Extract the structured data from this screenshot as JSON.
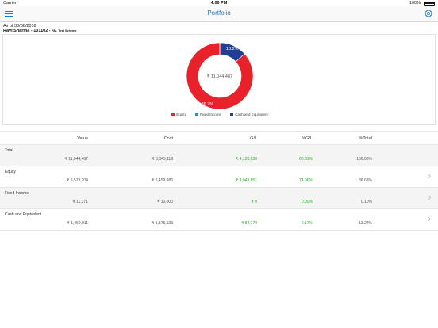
{
  "status_bar": {
    "carrier": "Carrier",
    "time": "4:06 PM",
    "battery_pct": "100%"
  },
  "nav": {
    "title": "Portfolio"
  },
  "header": {
    "as_of": "As of 30/08/2018",
    "client": "Ravi Sharma - 101102 - ",
    "scheme": "RM- Test Scheme"
  },
  "chart_data": {
    "type": "pie",
    "variant": "donut",
    "center_label": "₹ 11,044,487",
    "slices": [
      {
        "name": "Equity",
        "value": 86.7,
        "label": "86.7%",
        "color": "#e8212a"
      },
      {
        "name": "Fixed Income",
        "value": 0.1,
        "label": "",
        "color": "#1f8fd6"
      },
      {
        "name": "Cash and Equivalent",
        "value": 13.2,
        "label": "13.2%",
        "color": "#223f94"
      }
    ],
    "legend_position": "bottom"
  },
  "legend": [
    {
      "label": "Equity",
      "color": "#e8212a"
    },
    {
      "label": "Fixed Income",
      "color": "#1f8fd6"
    },
    {
      "label": "Cash and Equivalent",
      "color": "#223f94"
    }
  ],
  "table": {
    "headers": {
      "value": "Value",
      "cost": "Cost",
      "gl": "G/L",
      "pct_gl": "%G/L",
      "pct_total": "%Total"
    },
    "rows": [
      {
        "label": "Total",
        "value": "₹ 11,044,487",
        "cost": "₹ 6,845,119",
        "gl": "₹ 4,128,630",
        "pct_gl": "60.31%",
        "pct_total": "100.00%",
        "has_chevron": false
      },
      {
        "label": "Equity",
        "value": "₹ 9,573,204",
        "cost": "₹ 5,459,986",
        "gl": "₹ 4,043,851",
        "pct_gl": "74.06%",
        "pct_total": "86.68%",
        "has_chevron": true
      },
      {
        "label": "Fixed Income",
        "value": "₹ 11,371",
        "cost": "₹ 10,000",
        "gl": "₹ 0",
        "pct_gl": "0.00%",
        "pct_total": "0.10%",
        "has_chevron": true
      },
      {
        "label": "Cash and Equivalent",
        "value": "₹ 1,459,911",
        "cost": "₹ 1,375,133",
        "gl": "₹ 84,779",
        "pct_gl": "6.17%",
        "pct_total": "13.22%",
        "has_chevron": true
      }
    ]
  },
  "colors": {
    "accent": "#1a7ad9",
    "gain": "#2eaa2e"
  }
}
